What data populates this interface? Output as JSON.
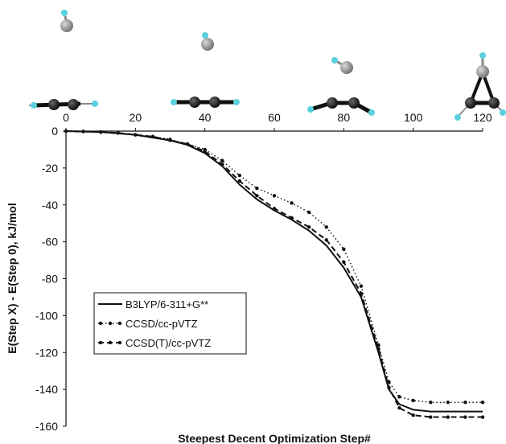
{
  "chart_data": {
    "type": "line",
    "xlabel": "Steepest Decent Optimization Step#",
    "ylabel": "E(Step X) - E(Step 0), kJ/mol",
    "xlim": [
      0,
      120
    ],
    "ylim": [
      -160,
      0
    ],
    "x_ticks": [
      "0",
      "20",
      "40",
      "60",
      "80",
      "100",
      "120"
    ],
    "y_ticks": [
      "0",
      "-20",
      "-40",
      "-60",
      "-80",
      "-100",
      "-120",
      "-140",
      "-160"
    ],
    "x_tick_position": "top",
    "grid": false,
    "legend_position": "lower-left",
    "series": [
      {
        "name": "B3LYP/6-311+G**",
        "style": "solid",
        "markers": false,
        "x": [
          0,
          10,
          20,
          30,
          35,
          40,
          45,
          50,
          55,
          60,
          65,
          70,
          75,
          80,
          85,
          90,
          93,
          96,
          100,
          105,
          110,
          115,
          120
        ],
        "y": [
          0,
          -0.5,
          -2,
          -5,
          -7.5,
          -12,
          -19,
          -29,
          -37,
          -43,
          -48,
          -54,
          -62,
          -74,
          -90,
          -120,
          -140,
          -148,
          -151,
          -152,
          -152,
          -152,
          -152
        ]
      },
      {
        "name": "CCSD/cc-pVTZ",
        "style": "dotted",
        "markers": true,
        "x": [
          0,
          5,
          10,
          15,
          20,
          25,
          30,
          35,
          40,
          45,
          50,
          55,
          60,
          65,
          70,
          75,
          80,
          85,
          90,
          93,
          96,
          100,
          105,
          110,
          115,
          120
        ],
        "y": [
          0,
          -0.2,
          -0.5,
          -1,
          -2,
          -3,
          -4.5,
          -7,
          -10,
          -16,
          -24,
          -31,
          -35,
          -39,
          -44,
          -52,
          -64,
          -84,
          -116,
          -136,
          -144,
          -146,
          -147,
          -147,
          -147,
          -147
        ]
      },
      {
        "name": "CCSD(T)/cc-pVTZ",
        "style": "dashed",
        "markers": true,
        "x": [
          0,
          5,
          10,
          15,
          20,
          25,
          30,
          35,
          40,
          45,
          50,
          55,
          60,
          65,
          70,
          75,
          80,
          85,
          90,
          93,
          96,
          100,
          105,
          110,
          115,
          120
        ],
        "y": [
          0,
          -0.2,
          -0.5,
          -1,
          -2,
          -3,
          -5,
          -7,
          -11,
          -18,
          -27,
          -35,
          -42,
          -47,
          -52,
          -59,
          -71,
          -88,
          -118,
          -139,
          -150,
          -154,
          -155,
          -155,
          -155,
          -155
        ]
      }
    ]
  },
  "molecules": [
    {
      "label": "step-0-structure",
      "step": 0
    },
    {
      "label": "step-40-structure",
      "step": 40
    },
    {
      "label": "step-80-structure",
      "step": 80
    },
    {
      "label": "step-120-structure",
      "step": 120
    }
  ],
  "colors": {
    "axis": "#111111",
    "series_line": "#111111",
    "carbon": "#1a1a1a",
    "hydrogen": "#5ad0de",
    "metal": "#8c8c8c"
  }
}
